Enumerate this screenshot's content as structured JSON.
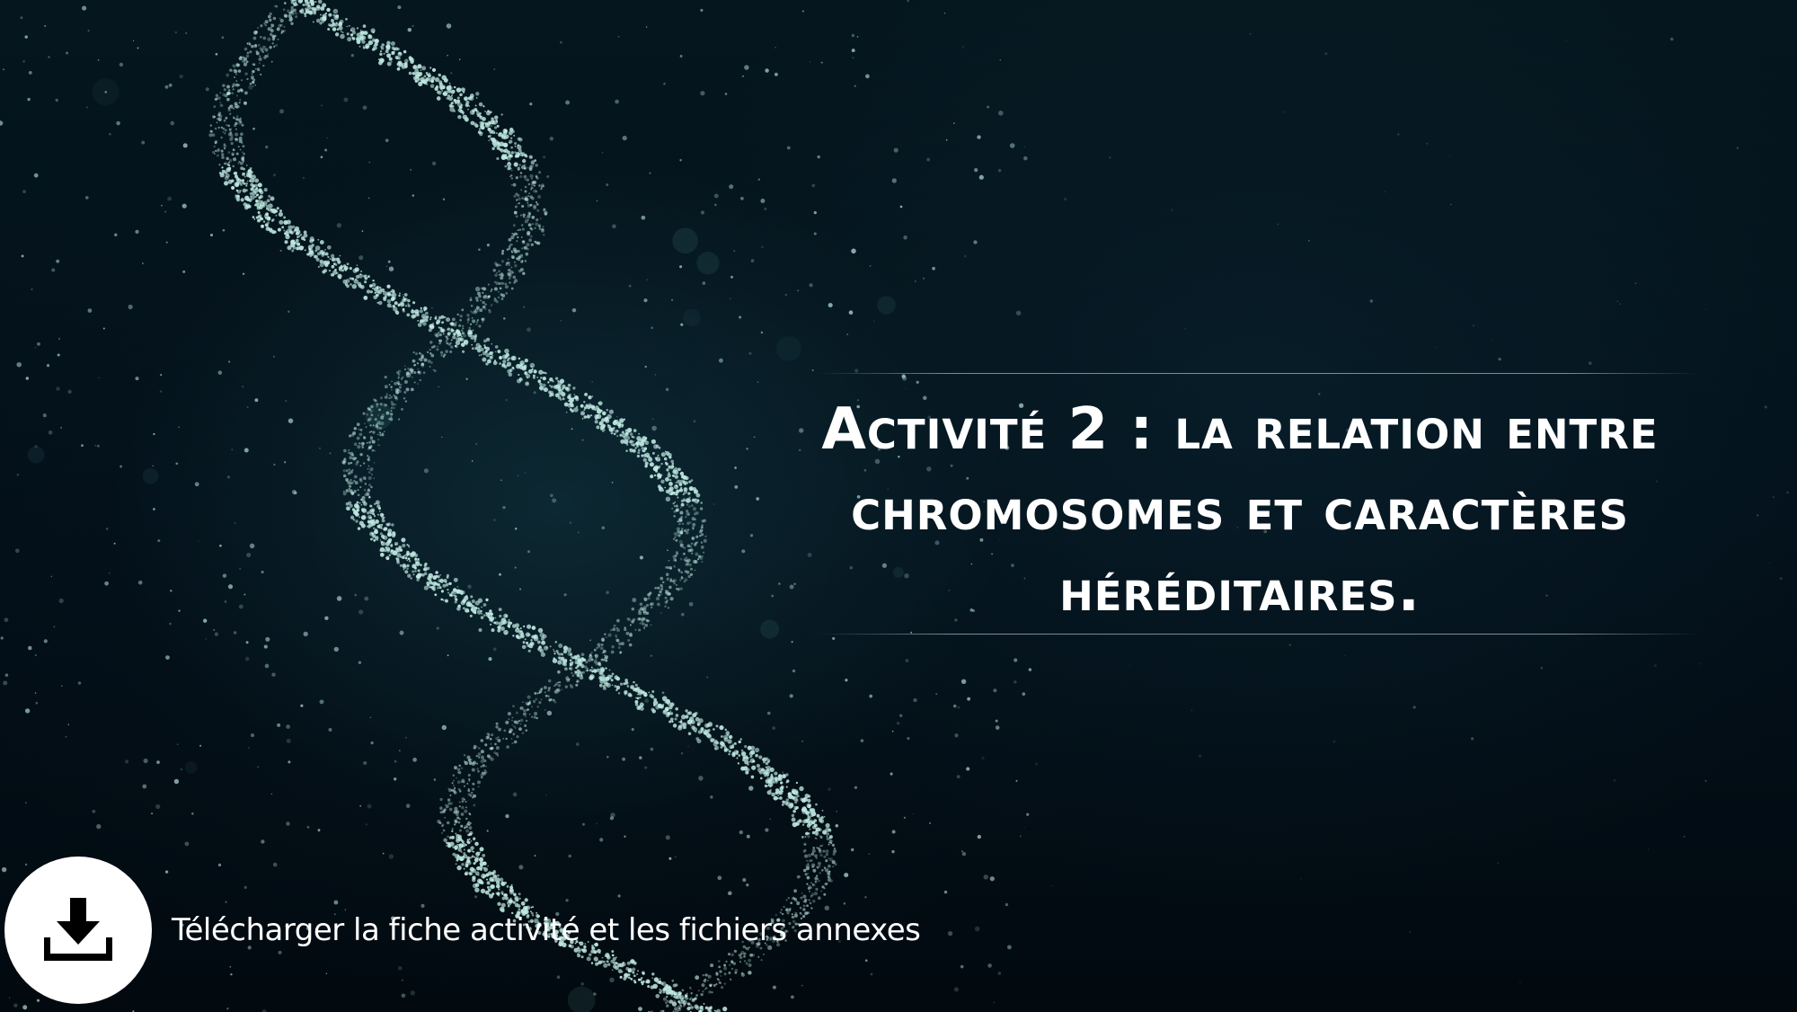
{
  "slide": {
    "title": "Activité 2 : la relation entre chromosomes et caractères héréditaires."
  },
  "download": {
    "label": "Télécharger la fiche activité et les fichiers annexes",
    "icon": "download-icon"
  },
  "colors": {
    "background": "#041018",
    "particles": "#bfe9e2",
    "text": "#ffffff"
  }
}
